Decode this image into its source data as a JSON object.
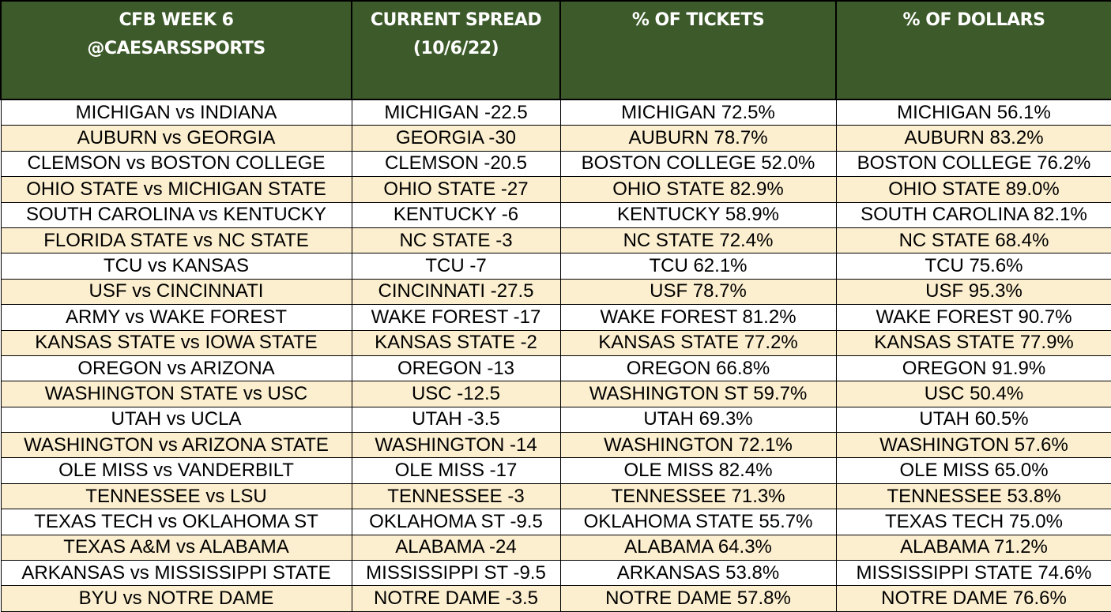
{
  "header": {
    "col1": [
      "CFB WEEK 6",
      "@CAESARSSPORTS"
    ],
    "col2": [
      "CURRENT SPREAD",
      "(10/6/22)"
    ],
    "col3": [
      "% OF TICKETS"
    ],
    "col4": [
      "% OF DOLLARS"
    ]
  },
  "rows": [
    [
      "MICHIGAN vs INDIANA",
      "MICHIGAN -22.5",
      "MICHIGAN 72.5%",
      "MICHIGAN 56.1%"
    ],
    [
      "AUBURN vs GEORGIA",
      "GEORGIA -30",
      "AUBURN 78.7%",
      "AUBURN 83.2%"
    ],
    [
      "CLEMSON vs BOSTON COLLEGE",
      "CLEMSON -20.5",
      "BOSTON COLLEGE 52.0%",
      "BOSTON COLLEGE 76.2%"
    ],
    [
      "OHIO STATE vs MICHIGAN STATE",
      "OHIO STATE -27",
      "OHIO STATE 82.9%",
      "OHIO STATE 89.0%"
    ],
    [
      "SOUTH CAROLINA vs KENTUCKY",
      "KENTUCKY -6",
      "KENTUCKY 58.9%",
      "SOUTH CAROLINA 82.1%"
    ],
    [
      "FLORIDA STATE vs NC STATE",
      "NC STATE -3",
      "NC STATE 72.4%",
      "NC STATE 68.4%"
    ],
    [
      "TCU vs KANSAS",
      "TCU -7",
      "TCU 62.1%",
      "TCU 75.6%"
    ],
    [
      "USF vs CINCINNATI",
      "CINCINNATI -27.5",
      "USF 78.7%",
      "USF 95.3%"
    ],
    [
      "ARMY vs WAKE FOREST",
      "WAKE FOREST -17",
      "WAKE FOREST 81.2%",
      "WAKE FOREST 90.7%"
    ],
    [
      "KANSAS STATE vs IOWA STATE",
      "KANSAS STATE -2",
      "KANSAS STATE 77.2%",
      "KANSAS STATE 77.9%"
    ],
    [
      "OREGON vs ARIZONA",
      "OREGON -13",
      "OREGON 66.8%",
      "OREGON 91.9%"
    ],
    [
      "WASHINGTON STATE vs USC",
      "USC -12.5",
      "WASHINGTON ST 59.7%",
      "USC 50.4%"
    ],
    [
      "UTAH vs UCLA",
      "UTAH -3.5",
      "UTAH 69.3%",
      "UTAH 60.5%"
    ],
    [
      "WASHINGTON vs ARIZONA STATE",
      "WASHINGTON -14",
      "WASHINGTON 72.1%",
      "WASHINGTON 57.6%"
    ],
    [
      "OLE MISS vs VANDERBILT",
      "OLE MISS -17",
      "OLE MISS 82.4%",
      "OLE MISS 65.0%"
    ],
    [
      "TENNESSEE vs LSU",
      "TENNESSEE -3",
      "TENNESSEE 71.3%",
      "TENNESSEE 53.8%"
    ],
    [
      "TEXAS TECH vs OKLAHOMA ST",
      "OKLAHOMA ST -9.5",
      "OKLAHOMA STATE 55.7%",
      "TEXAS TECH 75.0%"
    ],
    [
      "TEXAS A&M vs ALABAMA",
      "ALABAMA -24",
      "ALABAMA 64.3%",
      "ALABAMA 71.2%"
    ],
    [
      "ARKANSAS vs MISSISSIPPI STATE",
      "MISSISSIPPI ST -9.5",
      "ARKANSAS 53.8%",
      "MISSISSIPPI STATE 74.6%"
    ],
    [
      "BYU vs NOTRE DAME",
      "NOTRE DAME -3.5",
      "NOTRE DAME 57.8%",
      "NOTRE DAME 76.6%"
    ]
  ]
}
